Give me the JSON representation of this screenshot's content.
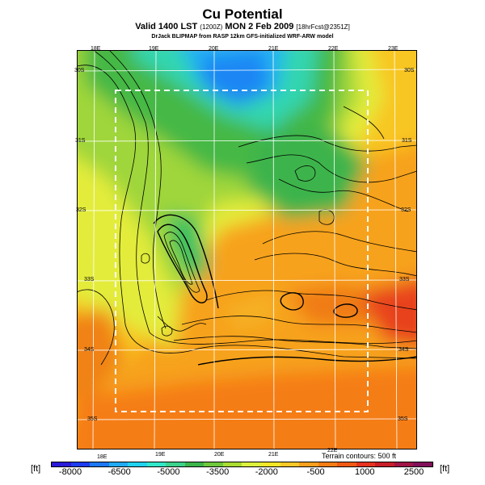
{
  "header": {
    "title": "Cu Potential",
    "subtitle_main": "Valid 1400 LST",
    "subtitle_utc": "(1200Z)",
    "subtitle_date": "MON 2 Feb 2009",
    "subtitle_run": "[18hrFcst@2351Z]",
    "credit": "DrJack BLIPMAP from RASP 12km GFS-initialized WRF-ARW model"
  },
  "map": {
    "lon_labels_top": [
      "18E",
      "19E",
      "20E",
      "21E",
      "22E",
      "23E"
    ],
    "lon_labels_bottom": [
      "18E",
      "19E",
      "20E",
      "21E",
      "22E"
    ],
    "lat_labels_left": [
      "30S",
      "31S",
      "32S",
      "33S",
      "34S",
      "35S"
    ],
    "lat_labels_right": [
      "30S",
      "31S",
      "32S",
      "33S",
      "34S",
      "35S"
    ],
    "contour_note": "Terrain contours: 500 ft"
  },
  "legend": {
    "unit_left": "[ft]",
    "unit_right": "[ft]",
    "ticks": [
      "-8000",
      "-6500",
      "-5000",
      "-3500",
      "-2000",
      "-500",
      "1000",
      "2500"
    ],
    "colors": [
      "#2a1ad8",
      "#1e3cf0",
      "#1e78f5",
      "#20aaf5",
      "#20d2f0",
      "#32e6c8",
      "#3cd28c",
      "#3cb44b",
      "#6ec83c",
      "#aadc32",
      "#dcf03c",
      "#f5e628",
      "#fac828",
      "#faa01e",
      "#f57d14",
      "#f05a14",
      "#e6321e",
      "#c81e28",
      "#a01446",
      "#82105a"
    ]
  }
}
